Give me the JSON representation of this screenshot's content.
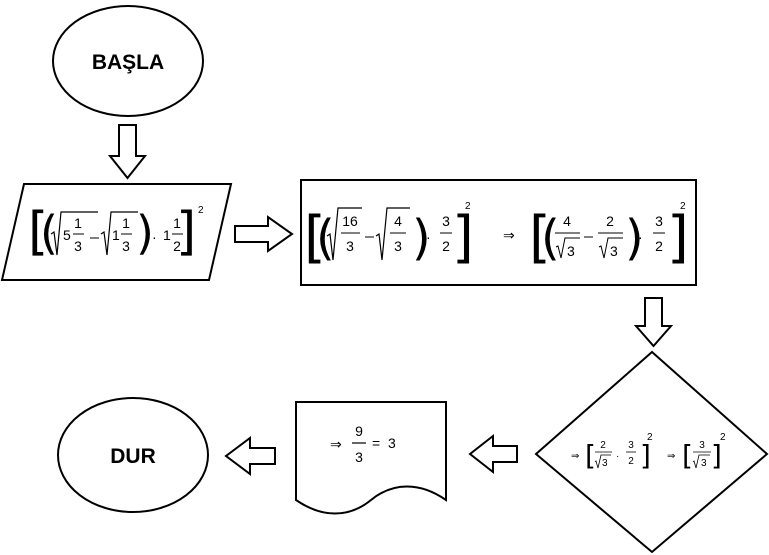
{
  "nodes": {
    "start": {
      "label": "BAŞLA"
    },
    "stop": {
      "label": "DUR"
    }
  },
  "input_step": {
    "w1": "5",
    "f1_num": "1",
    "f1_den": "3",
    "w2": "1",
    "f2_num": "1",
    "f2_den": "3",
    "dot": "·",
    "w3": "1",
    "f3_num": "1",
    "f3_den": "2",
    "exponent": "2"
  },
  "process_step": {
    "a_num": "16",
    "a_den": "3",
    "b_num": "4",
    "b_den": "3",
    "dot": "·",
    "c_num": "3",
    "c_den": "2",
    "exponent": "2",
    "implies": "⇒",
    "d_num": "4",
    "d_den": "3",
    "e_num": "2",
    "e_den": "3",
    "f_num": "3",
    "f_den": "2"
  },
  "decision_step": {
    "implies": "⇒",
    "a_num": "2",
    "a_den": "3",
    "dot": "·",
    "b_num": "3",
    "b_den": "2",
    "exponent": "2",
    "c_num": "3",
    "c_den": "3"
  },
  "output_step": {
    "implies": "⇒",
    "num": "9",
    "den": "3",
    "equals": "=",
    "result": "3"
  }
}
